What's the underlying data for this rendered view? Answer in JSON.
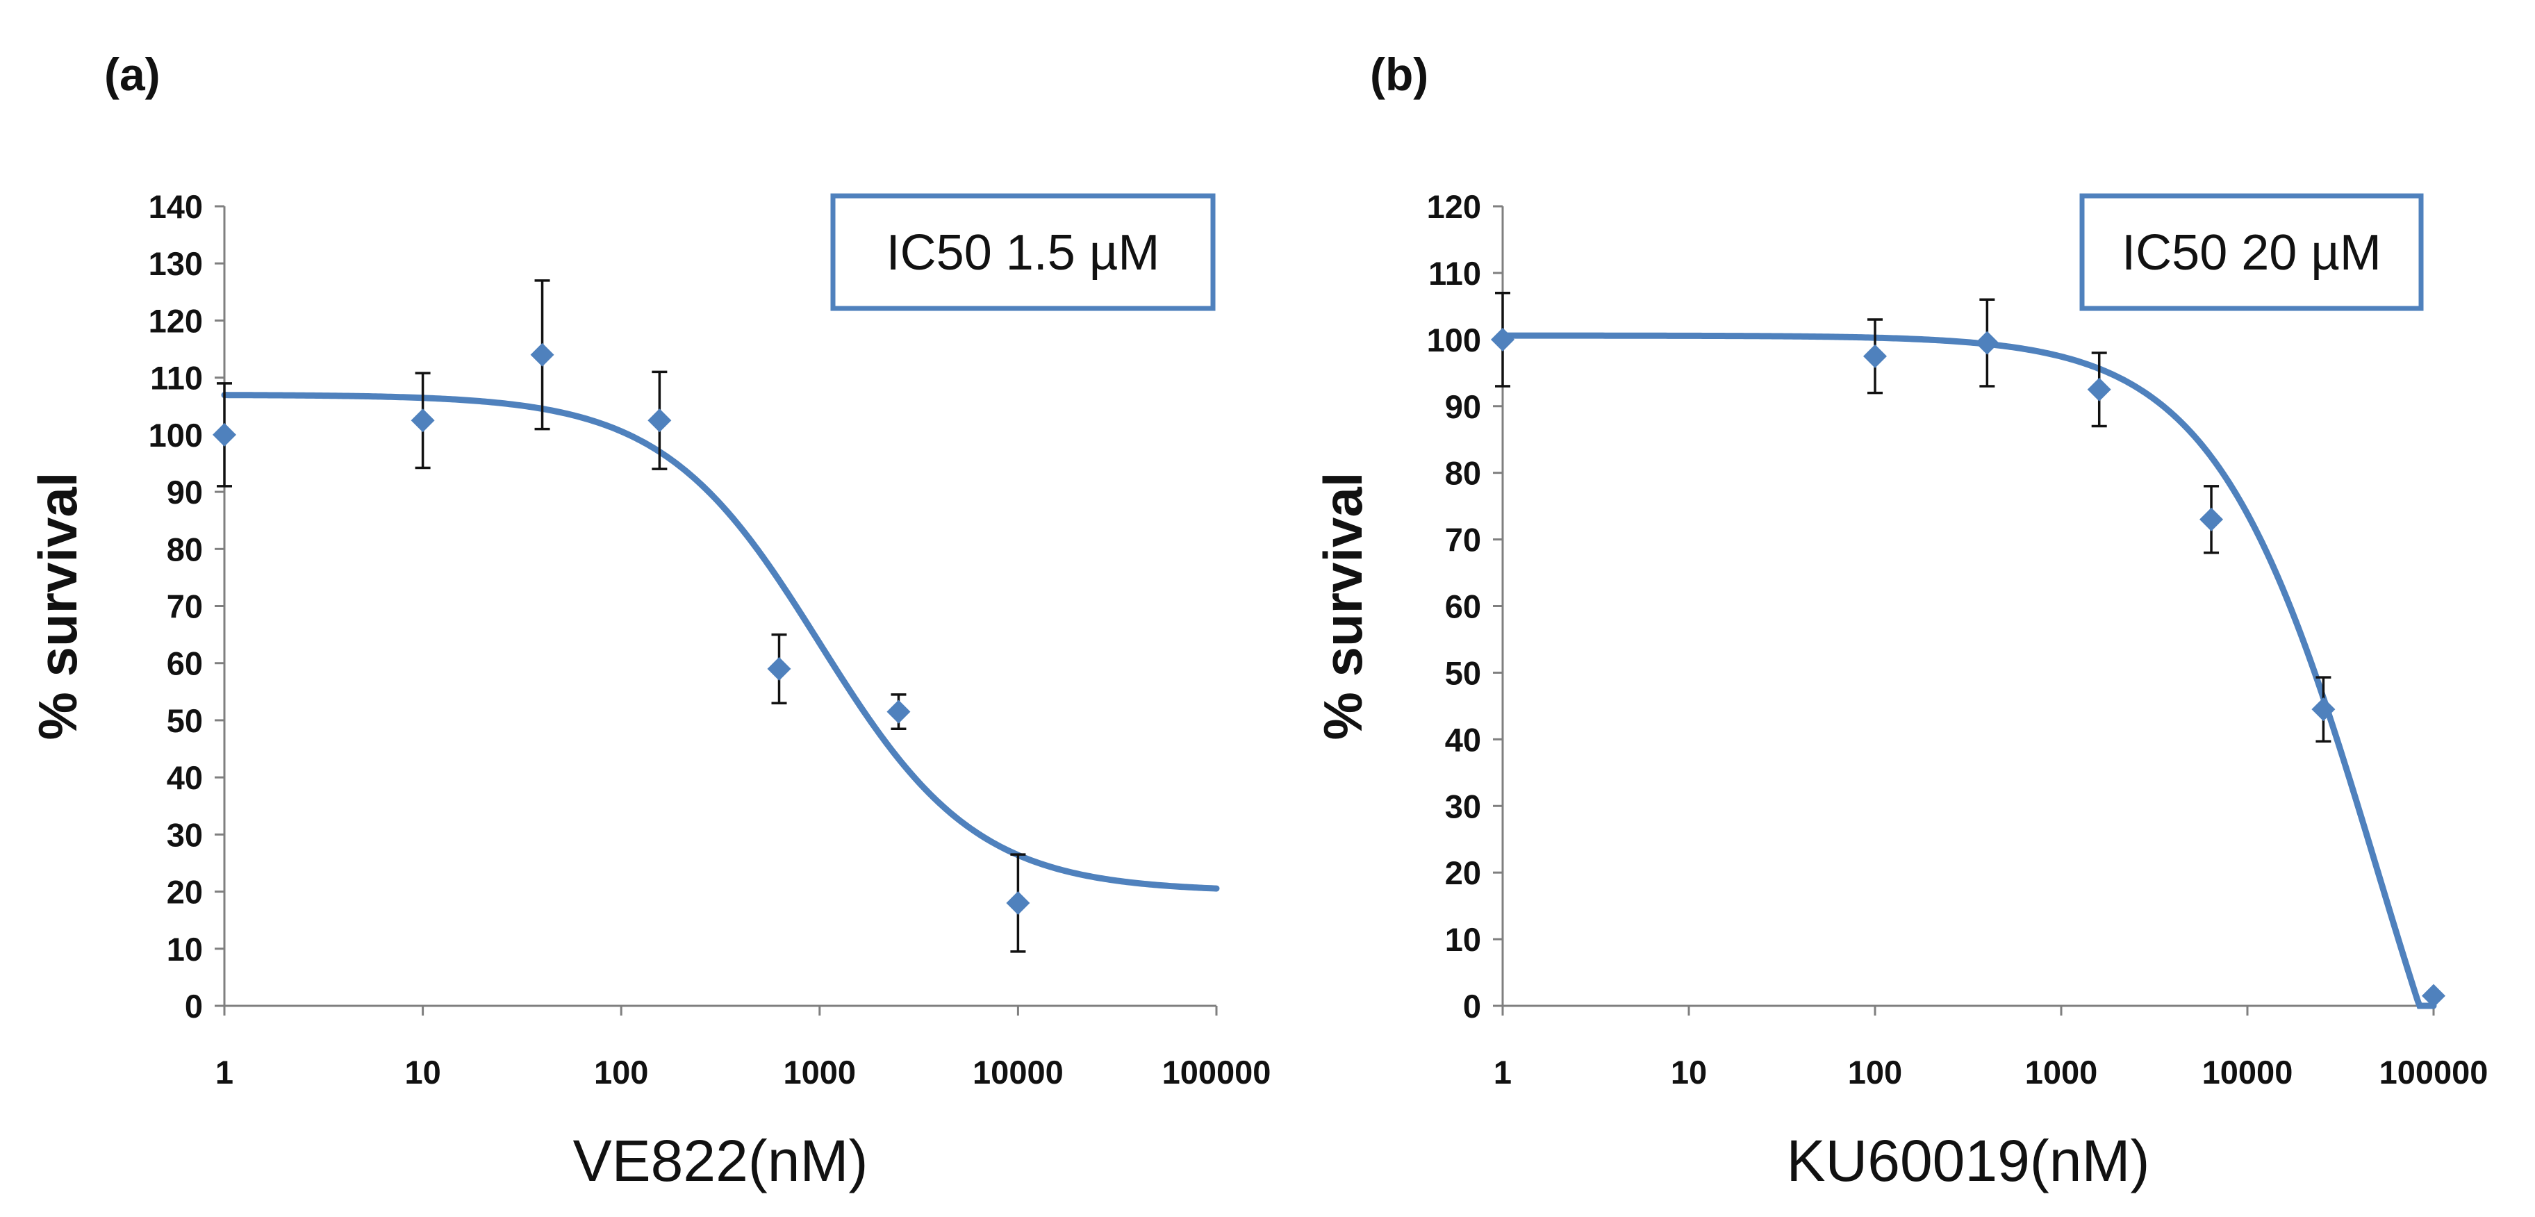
{
  "chart_data": [
    {
      "panel_label": "(a)",
      "type": "scatter",
      "x_scale": "log",
      "xlabel": "VE822(nM)",
      "ylabel": "% survival",
      "xlim": [
        1,
        100000
      ],
      "ylim": [
        0,
        140
      ],
      "y_step": 10,
      "x_ticks": [
        1,
        10,
        100,
        1000,
        10000,
        100000
      ],
      "x_tick_labels": [
        "1",
        "10",
        "100",
        "1000",
        "10000",
        "100000"
      ],
      "annotation": "IC50 1.5 µM",
      "color": "#4f81bd",
      "points": [
        {
          "x": 1,
          "y": 100,
          "err": 9
        },
        {
          "x": 10,
          "y": 102.5,
          "err": 8.3
        },
        {
          "x": 40,
          "y": 114,
          "err": 13
        },
        {
          "x": 156,
          "y": 102.5,
          "err": 8.5
        },
        {
          "x": 625,
          "y": 59,
          "err": 6
        },
        {
          "x": 2500,
          "y": 51.5,
          "err": 3
        },
        {
          "x": 10000,
          "y": 18,
          "err": 8.5
        }
      ],
      "fit": {
        "model": "4PL",
        "top": 107,
        "bottom": 20,
        "ic50": 1000,
        "hill": 1.1
      }
    },
    {
      "panel_label": "(b)",
      "type": "scatter",
      "x_scale": "log",
      "xlabel": "KU60019(nM)",
      "ylabel": "% survival",
      "xlim": [
        1,
        100000
      ],
      "ylim": [
        0,
        120
      ],
      "y_step": 10,
      "x_ticks": [
        1,
        10,
        100,
        1000,
        10000,
        100000
      ],
      "x_tick_labels": [
        "1",
        "10",
        "100",
        "1000",
        "10000",
        "100000"
      ],
      "annotation": "IC50 20 µM",
      "color": "#4f81bd",
      "points": [
        {
          "x": 1,
          "y": 100,
          "err": 7
        },
        {
          "x": 100,
          "y": 97.5,
          "err": 5.5
        },
        {
          "x": 400,
          "y": 99.5,
          "err": 6.5
        },
        {
          "x": 1600,
          "y": 92.5,
          "err": 5.5
        },
        {
          "x": 6400,
          "y": 73,
          "err": 5
        },
        {
          "x": 25600,
          "y": 44.5,
          "err": 4.8
        },
        {
          "x": 100000,
          "y": 1.5,
          "err": 0
        }
      ],
      "fit": {
        "model": "4PL",
        "top": 100.6,
        "bottom": -60,
        "ic50": 50000,
        "hill": 1.0
      }
    }
  ]
}
